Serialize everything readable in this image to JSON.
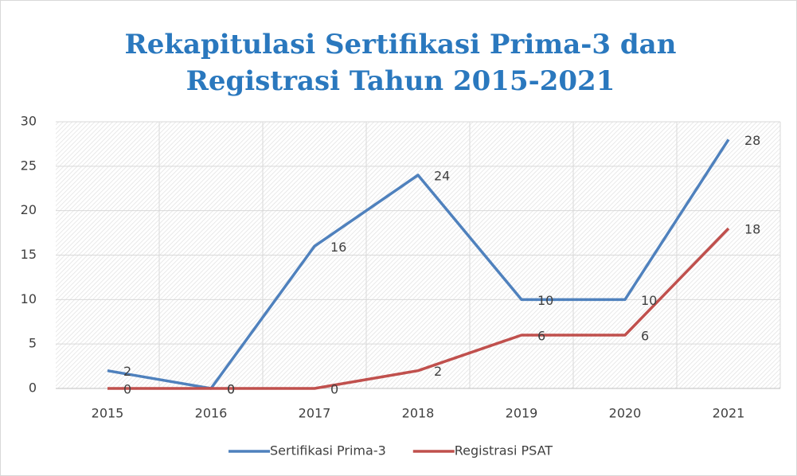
{
  "chart_data": {
    "type": "line",
    "title": [
      "Rekapitulasi Sertifikasi Prima-3 dan",
      "Registrasi Tahun 2015-2021"
    ],
    "categories": [
      "2015",
      "2016",
      "2017",
      "2018",
      "2019",
      "2020",
      "2021"
    ],
    "series": [
      {
        "name": "Sertifikasi Prima-3",
        "color": "#4f81bd",
        "values": [
          2,
          0,
          16,
          24,
          10,
          10,
          28
        ]
      },
      {
        "name": "Registrasi PSAT",
        "color": "#c0504d",
        "values": [
          0,
          0,
          0,
          2,
          6,
          6,
          18
        ]
      }
    ],
    "ylim": [
      0,
      30
    ],
    "yticks": [
      0,
      5,
      10,
      15,
      20,
      25,
      30
    ],
    "grid": true,
    "legend": "bottom"
  }
}
